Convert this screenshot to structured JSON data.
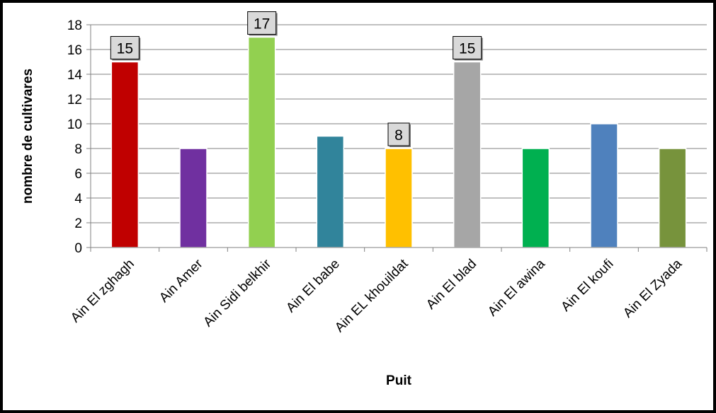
{
  "chart_data": {
    "type": "bar",
    "title": "",
    "xlabel": "Puit",
    "ylabel": "nombre de cultivares",
    "categories": [
      "Ain El zghagh",
      "Ain Amer",
      "Ain Sidi belkhir",
      "Ain  El babe",
      "Ain EL khouildat",
      "Ain  El blad",
      "Ain El awina",
      "Ain El koufi",
      "Ain El Zyada"
    ],
    "values": [
      15,
      8,
      17,
      9,
      8,
      15,
      8,
      10,
      8
    ],
    "bar_colors": [
      "#c00000",
      "#7030a0",
      "#92d050",
      "#31849b",
      "#ffc000",
      "#a6a6a6",
      "#00b050",
      "#4f81bd",
      "#77933c"
    ],
    "data_labels": [
      {
        "index": 0,
        "text": "15"
      },
      {
        "index": 2,
        "text": "17"
      },
      {
        "index": 4,
        "text": "8"
      },
      {
        "index": 5,
        "text": "15"
      }
    ],
    "ylim": [
      0,
      18
    ],
    "yticks": [
      0,
      2,
      4,
      6,
      8,
      10,
      12,
      14,
      16,
      18
    ],
    "grid": true,
    "legend": "none"
  }
}
